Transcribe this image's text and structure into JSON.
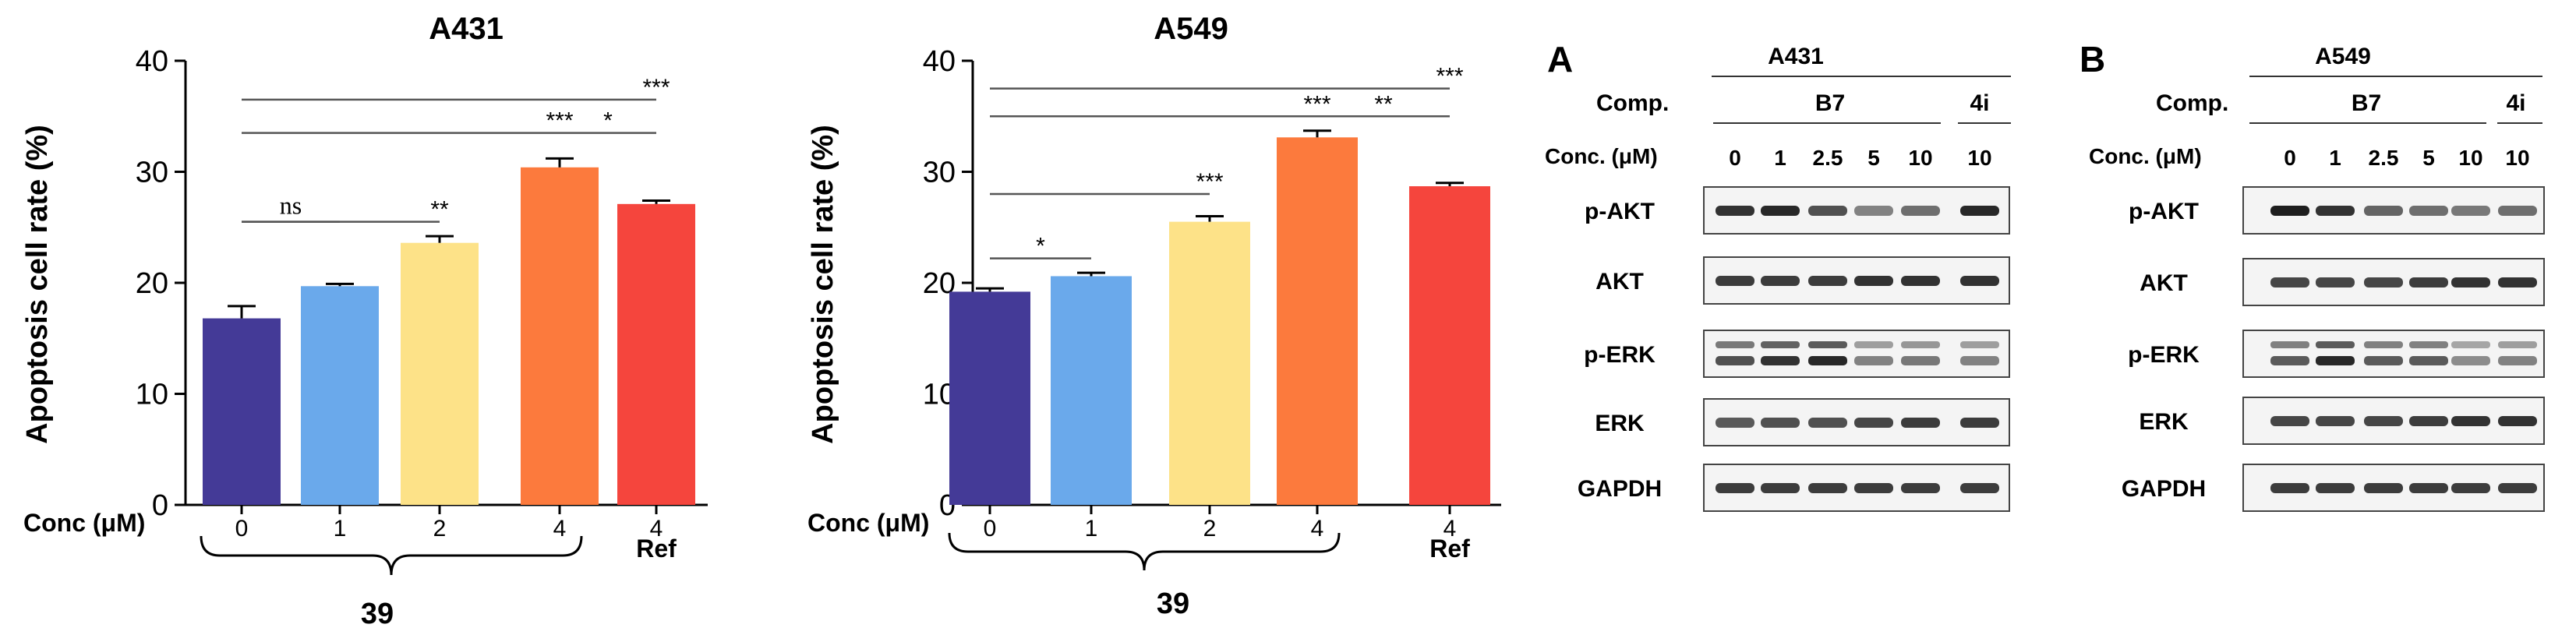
{
  "chart_data": [
    {
      "type": "bar",
      "title": "A431",
      "xlabel": "Conc (μM)",
      "ylabel": "Apoptosis cell rate (%)",
      "ylim": [
        0,
        40
      ],
      "yticks": [
        "0",
        "10",
        "20",
        "30",
        "40"
      ],
      "categories": [
        "0",
        "1",
        "2",
        "4",
        "4"
      ],
      "values": [
        16.8,
        19.7,
        23.6,
        30.4,
        27.1
      ],
      "errors": [
        1.1,
        0.2,
        0.6,
        0.8,
        0.3
      ],
      "colors": [
        "#443a97",
        "#6aa9eb",
        "#fde288",
        "#fc7a3d",
        "#f5453d"
      ],
      "extra_label": "Ref",
      "compound": "39",
      "significance": [
        {
          "from": 0,
          "to": 1,
          "label": "ns",
          "y": 25.5
        },
        {
          "from": 0,
          "to": 2,
          "label": "**",
          "y": 25.5
        },
        {
          "from": 0,
          "to": 3,
          "label": "***",
          "y": 33.5
        },
        {
          "from": 3,
          "to": 4,
          "label": "*",
          "y": 33.5
        },
        {
          "from": 0,
          "to": 4,
          "label": "***",
          "y": 36.5
        }
      ]
    },
    {
      "type": "bar",
      "title": "A549",
      "xlabel": "Conc (μM)",
      "ylabel": "Apoptosis cell rate (%)",
      "ylim": [
        0,
        40
      ],
      "yticks": [
        "0",
        "10",
        "20",
        "30",
        "40"
      ],
      "categories": [
        "0",
        "1",
        "2",
        "4",
        "4"
      ],
      "values": [
        19.2,
        20.6,
        25.5,
        33.1,
        28.7
      ],
      "errors": [
        0.3,
        0.3,
        0.5,
        0.6,
        0.3
      ],
      "colors": [
        "#443a97",
        "#6aa9eb",
        "#fde288",
        "#fc7a3d",
        "#f5453d"
      ],
      "extra_label": "Ref",
      "compound": "39",
      "significance": [
        {
          "from": 0,
          "to": 1,
          "label": "*",
          "y": 22.2
        },
        {
          "from": 0,
          "to": 2,
          "label": "***",
          "y": 28.0
        },
        {
          "from": 0,
          "to": 3,
          "label": "***",
          "y": 35.0
        },
        {
          "from": 3,
          "to": 4,
          "label": "**",
          "y": 35.0
        },
        {
          "from": 0,
          "to": 4,
          "label": "***",
          "y": 37.5
        }
      ]
    }
  ],
  "western_blots": [
    {
      "panel": "A",
      "cell_line": "A431",
      "comp_label": "Comp.",
      "comp_groups": [
        "B7",
        "4i"
      ],
      "conc_label": "Conc. (μM)",
      "concentrations": [
        "0",
        "1",
        "2.5",
        "5",
        "10",
        "10"
      ],
      "proteins": [
        "p-AKT",
        "AKT",
        "p-ERK",
        "ERK",
        "GAPDH"
      ],
      "intensities": {
        "p-AKT": [
          0.85,
          0.9,
          0.7,
          0.45,
          0.55,
          0.9
        ],
        "AKT": [
          0.8,
          0.8,
          0.8,
          0.85,
          0.85,
          0.85
        ],
        "p-ERK": [
          0.7,
          0.85,
          0.9,
          0.45,
          0.5,
          0.45
        ],
        "ERK": [
          0.65,
          0.7,
          0.7,
          0.75,
          0.8,
          0.8
        ],
        "GAPDH": [
          0.8,
          0.8,
          0.8,
          0.8,
          0.8,
          0.8
        ]
      }
    },
    {
      "panel": "B",
      "cell_line": "A549",
      "comp_label": "Comp.",
      "comp_groups": [
        "B7",
        "4i"
      ],
      "conc_label": "Conc. (μM)",
      "concentrations": [
        "0",
        "1",
        "2.5",
        "5",
        "10",
        "10"
      ],
      "proteins": [
        "p-AKT",
        "AKT",
        "p-ERK",
        "ERK",
        "GAPDH"
      ],
      "intensities": {
        "p-AKT": [
          0.95,
          0.85,
          0.6,
          0.55,
          0.5,
          0.55
        ],
        "AKT": [
          0.75,
          0.75,
          0.75,
          0.8,
          0.85,
          0.85
        ],
        "p-ERK": [
          0.65,
          0.9,
          0.65,
          0.65,
          0.4,
          0.45
        ],
        "ERK": [
          0.75,
          0.75,
          0.75,
          0.8,
          0.85,
          0.85
        ],
        "GAPDH": [
          0.8,
          0.8,
          0.8,
          0.8,
          0.8,
          0.8
        ]
      }
    }
  ]
}
